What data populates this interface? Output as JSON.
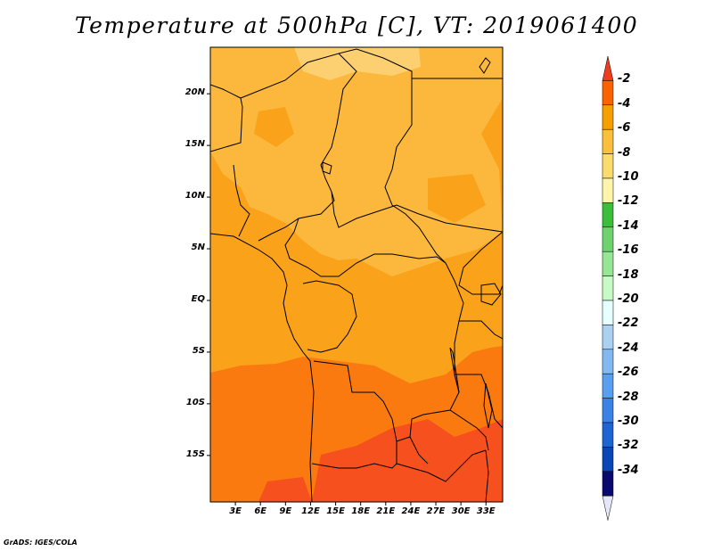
{
  "title": "Temperature at 500hPa [C], VT: 2019061400",
  "credit": "GrADS: IGES/COLA",
  "variable": "Temperature at 500hPa",
  "units": "C",
  "valid_time": "2019061400",
  "lat_ticks": [
    {
      "label": "20N",
      "lat": 20
    },
    {
      "label": "15N",
      "lat": 15
    },
    {
      "label": "10N",
      "lat": 10
    },
    {
      "label": "5N",
      "lat": 5
    },
    {
      "label": "EQ",
      "lat": 0
    },
    {
      "label": "5S",
      "lat": -5
    },
    {
      "label": "10S",
      "lat": -10
    },
    {
      "label": "15S",
      "lat": -15
    }
  ],
  "lon_ticks": [
    {
      "label": "3E",
      "lon": 3
    },
    {
      "label": "6E",
      "lon": 6
    },
    {
      "label": "9E",
      "lon": 9
    },
    {
      "label": "12E",
      "lon": 12
    },
    {
      "label": "15E",
      "lon": 15
    },
    {
      "label": "18E",
      "lon": 18
    },
    {
      "label": "21E",
      "lon": 21
    },
    {
      "label": "24E",
      "lon": 24
    },
    {
      "label": "27E",
      "lon": 27
    },
    {
      "label": "30E",
      "lon": 30
    },
    {
      "label": "33E",
      "lon": 33
    }
  ],
  "extent": {
    "lon_min": 0,
    "lon_max": 35,
    "lat_min": -19.5,
    "lat_max": 24.5
  },
  "colorbar": {
    "labels": [
      "-2",
      "-4",
      "-6",
      "-8",
      "-10",
      "-12",
      "-14",
      "-16",
      "-18",
      "-20",
      "-22",
      "-24",
      "-26",
      "-28",
      "-30",
      "-32",
      "-34"
    ],
    "colors": [
      "#f03c1e",
      "#fa6400",
      "#f5a000",
      "#fac03c",
      "#fadc6e",
      "#fff5aa",
      "#3cbe3c",
      "#6ed26e",
      "#96e696",
      "#c8fac8",
      "#e6ffff",
      "#aad2f0",
      "#82b9f0",
      "#5a9ef0",
      "#3c82e6",
      "#1e64d2",
      "#0a46b4",
      "#0a0a6e",
      "#e6e6fa"
    ]
  },
  "field_colors": {
    "warm_band": "#fa7a10",
    "very_warm": "#f5501e",
    "mid": "#f9a21a",
    "cool": "#fbb83c",
    "coolest": "#fcd070"
  }
}
